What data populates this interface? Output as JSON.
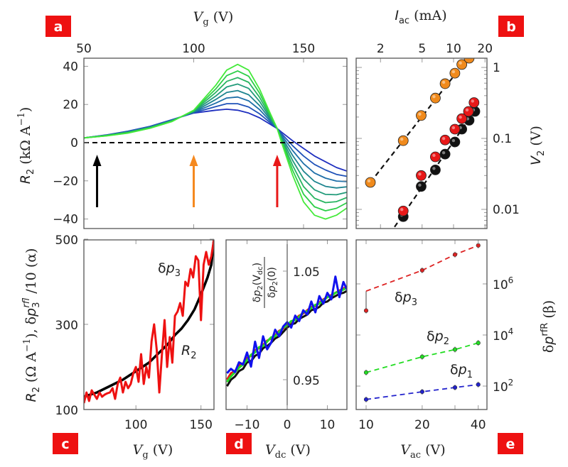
{
  "panel_tags": [
    "a",
    "b",
    "c",
    "d",
    "e"
  ],
  "tag_color": "#ee1111",
  "chart_data": [
    {
      "panel": "a",
      "type": "line",
      "xlabel": {
        "main": "V",
        "sub": "g",
        "unit": " (V)"
      },
      "ylabel": {
        "main": "R",
        "sub": "2",
        "unit": " (kΩ A",
        "sup": "−1",
        "close": ")"
      },
      "xlim": [
        50,
        170
      ],
      "ylim": [
        -45,
        44
      ],
      "xticks": [
        50,
        100,
        150
      ],
      "yticks": [
        40,
        20,
        0,
        -20,
        -40
      ],
      "x": [
        50,
        60,
        70,
        80,
        90,
        100,
        110,
        115,
        120,
        125,
        130,
        135,
        138,
        140,
        145,
        150,
        155,
        160,
        165,
        170
      ],
      "series": [
        {
          "color": "#1f2fbf",
          "values": [
            2.5,
            4,
            6,
            8.5,
            12,
            15.5,
            17,
            17.5,
            17,
            15.5,
            13,
            9.5,
            7.4,
            5.5,
            1,
            -3,
            -7,
            -10,
            -13,
            -15
          ]
        },
        {
          "color": "#1f52b8",
          "values": [
            2.5,
            3.9,
            5.9,
            8.4,
            11.9,
            15.7,
            18.9,
            20.4,
            20.4,
            18.7,
            15.1,
            10.3,
            7.4,
            4.7,
            -1.6,
            -7,
            -11.4,
            -14.3,
            -16.6,
            -17.7
          ]
        },
        {
          "color": "#1e6fa8",
          "values": [
            2.5,
            3.9,
            5.7,
            8.2,
            11.7,
            15.9,
            20.7,
            23.4,
            23.9,
            21.9,
            17.3,
            11.1,
            7.4,
            3.9,
            -4.1,
            -11,
            -15.9,
            -18.6,
            -20.1,
            -20.4
          ]
        },
        {
          "color": "#1f8590",
          "values": [
            2.5,
            3.8,
            5.6,
            8.1,
            11.6,
            16.1,
            22.6,
            26.3,
            27.3,
            25.1,
            19.4,
            11.9,
            7.4,
            3.1,
            -6.7,
            -15,
            -20.3,
            -22.9,
            -23.7,
            -23.1
          ]
        },
        {
          "color": "#229b7a",
          "values": [
            2.5,
            3.7,
            5.4,
            7.9,
            11.4,
            16.4,
            24.4,
            29.2,
            30.7,
            28.4,
            21.6,
            12.6,
            7.4,
            2.4,
            -9.3,
            -19,
            -24.7,
            -27.1,
            -27.3,
            -25.9
          ]
        },
        {
          "color": "#27b460",
          "values": [
            2.5,
            3.6,
            5.3,
            7.8,
            11.3,
            16.6,
            26.3,
            32.1,
            34.1,
            31.6,
            23.7,
            13.4,
            7.4,
            1.6,
            -11.9,
            -23,
            -29.1,
            -31.4,
            -30.9,
            -28.6
          ]
        },
        {
          "color": "#2dcf48",
          "values": [
            2.5,
            3.6,
            5.1,
            7.6,
            11.1,
            16.8,
            28.1,
            35.1,
            37.6,
            34.8,
            25.9,
            14.2,
            7.4,
            0.8,
            -14.4,
            -27,
            -33.6,
            -35.7,
            -34.4,
            -31.3
          ]
        },
        {
          "color": "#44ea3a",
          "values": [
            2.5,
            3.5,
            5,
            7.5,
            11,
            17,
            30,
            38,
            41,
            38,
            28,
            15,
            7.4,
            0,
            -17,
            -31,
            -38,
            -40,
            -38,
            -34
          ]
        }
      ],
      "zero_line": 0,
      "arrows": [
        {
          "x": 56,
          "color": "#000000"
        },
        {
          "x": 100,
          "color": "#f5891f"
        },
        {
          "x": 138,
          "color": "#e81818"
        }
      ]
    },
    {
      "panel": "b",
      "type": "scatter",
      "xscale": "log",
      "yscale": "log",
      "xlabel": {
        "main": "I",
        "sub": "ac",
        "unit": " (mA)"
      },
      "ylabel": {
        "main": "V",
        "sub": "2",
        "unit": " (V)"
      },
      "xticks": [
        2,
        5,
        10,
        20
      ],
      "yticks": [
        {
          "v": 1,
          "label": "1"
        },
        {
          "v": 0.1,
          "label": "0.1"
        },
        {
          "v": 0.01,
          "label": "0.01"
        }
      ],
      "series": [
        {
          "name": "orange",
          "color": "#f08a1c",
          "x": [
            1.6,
            3.3,
            4.9,
            6.7,
            8.3,
            10.3,
            12,
            14.1
          ],
          "y": [
            0.024,
            0.093,
            0.21,
            0.37,
            0.59,
            0.83,
            1.1,
            1.35
          ],
          "fit": [
            [
              1.6,
              0.024
            ],
            [
              15,
              1.6
            ]
          ]
        },
        {
          "name": "black",
          "color": "#111111",
          "x": [
            3.3,
            4.9,
            6.7,
            8.3,
            10.3,
            12,
            14.1,
            16
          ],
          "y": [
            0.0079,
            0.021,
            0.036,
            0.06,
            0.089,
            0.135,
            0.18,
            0.24
          ],
          "fit": [
            [
              2.45,
              0.0045
            ],
            [
              14.5,
              0.2
            ]
          ]
        },
        {
          "name": "red",
          "color": "#e81818",
          "x": [
            3.3,
            4.9,
            6.7,
            8.3,
            10.3,
            12,
            13.9,
            15.7
          ],
          "y": [
            0.0095,
            0.03,
            0.055,
            0.095,
            0.135,
            0.19,
            0.24,
            0.32
          ]
        }
      ]
    },
    {
      "panel": "c",
      "type": "line",
      "xlabel": {
        "main": "V",
        "sub": "g",
        "unit": " (V)"
      },
      "ylabel": {
        "main": "R",
        "sub": "2",
        "unit1": " (Ω A",
        "sup1": "−1",
        "unit2": "), δ",
        "p": "p",
        "psub": "3",
        "psup": "rfl",
        "unit3": " /10 (α)"
      },
      "xlim": [
        60,
        160
      ],
      "ylim": [
        100,
        500
      ],
      "xticks": [
        100,
        150
      ],
      "yticks": [
        500,
        300,
        100
      ],
      "annotations": [
        {
          "text": "δ",
          "it": "p",
          "sub": "3"
        },
        {
          "it": "R",
          "sub": "2"
        }
      ],
      "series": [
        {
          "name": "R2",
          "color": "#000000",
          "x": [
            60,
            70,
            80,
            90,
            100,
            110,
            120,
            125,
            130,
            135,
            140,
            145,
            150,
            155,
            158,
            160
          ],
          "values": [
            130,
            140,
            155,
            170,
            190,
            210,
            240,
            255,
            275,
            290,
            310,
            335,
            370,
            410,
            440,
            500
          ]
        },
        {
          "name": "δp3",
          "color": "#ee1111",
          "x_start": 60,
          "x_step": 2,
          "values": [
            115,
            140,
            120,
            145,
            135,
            125,
            140,
            130,
            135,
            138,
            140,
            150,
            125,
            160,
            175,
            140,
            165,
            150,
            160,
            185,
            200,
            165,
            230,
            160,
            200,
            175,
            260,
            300,
            240,
            140,
            230,
            310,
            200,
            270,
            210,
            320,
            330,
            350,
            320,
            400,
            390,
            430,
            410,
            460,
            450,
            310,
            440,
            470,
            440,
            460,
            500
          ]
        }
      ]
    },
    {
      "panel": "d",
      "type": "line",
      "xlabel": {
        "main": "V",
        "sub": "dc",
        "unit": " (V)"
      },
      "ylabel": {
        "num_p": "p",
        "num_sub": "2",
        "num_arg": "(V",
        "num_argsub": "dc",
        "num_close": ")",
        "den_p": "p",
        "den_sub": "2",
        "den_arg": "(0)",
        "delta": "δ"
      },
      "xlim": [
        -15.3,
        14.9
      ],
      "ylim": [
        0.923,
        1.079
      ],
      "xticks": [
        {
          "v": -10,
          "label": "−10"
        },
        {
          "v": 0,
          "label": "0"
        },
        {
          "v": 10,
          "label": "10"
        }
      ],
      "yticks": [
        {
          "v": 1.05,
          "label": "1.05"
        },
        {
          "v": 0.95,
          "label": "0.95"
        }
      ],
      "x_start": -15,
      "x_step": 1,
      "series": [
        {
          "color": "#111111",
          "values": [
            0.944,
            0.95,
            0.953,
            0.958,
            0.96,
            0.966,
            0.967,
            0.972,
            0.974,
            0.979,
            0.981,
            0.984,
            0.988,
            0.99,
            0.994,
            0.998,
            1.001,
            1.002,
            1.006,
            1.008,
            1.01,
            1.014,
            1.015,
            1.017,
            1.021,
            1.022,
            1.025,
            1.027,
            1.029,
            1.03,
            1.032
          ]
        },
        {
          "color": "#e81818",
          "values": [
            0.95,
            0.956,
            0.958,
            0.963,
            0.965,
            0.97,
            0.972,
            0.977,
            0.979,
            0.982,
            0.986,
            0.988,
            0.991,
            0.995,
            0.997,
            1.001,
            1.003,
            1.006,
            1.009,
            1.011,
            1.014,
            1.017,
            1.018,
            1.021,
            1.024,
            1.026,
            1.028,
            1.03,
            1.032,
            1.034,
            1.036
          ]
        },
        {
          "color": "#22dd22",
          "values": [
            0.948,
            0.953,
            0.957,
            0.961,
            0.964,
            0.968,
            0.973,
            0.975,
            0.98,
            0.981,
            0.985,
            0.989,
            0.99,
            0.994,
            0.998,
            1.0,
            1.004,
            1.005,
            1.008,
            1.012,
            1.013,
            1.016,
            1.019,
            1.02,
            1.023,
            1.026,
            1.027,
            1.03,
            1.031,
            1.033,
            1.035
          ]
        },
        {
          "color": "#1111ee",
          "values": [
            0.956,
            0.96,
            0.957,
            0.966,
            0.964,
            0.975,
            0.962,
            0.985,
            0.97,
            0.99,
            0.978,
            0.984,
            0.996,
            0.99,
            0.999,
            1.003,
            0.998,
            1.009,
            1.004,
            1.014,
            1.01,
            1.022,
            1.012,
            1.027,
            1.02,
            1.03,
            1.024,
            1.045,
            1.026,
            1.04,
            1.032
          ]
        }
      ]
    },
    {
      "panel": "e",
      "type": "scatter",
      "xscale": "log",
      "yscale": "log",
      "xlabel": {
        "main": "V",
        "sub": "ac",
        "unit": " (V)"
      },
      "ylabel": {
        "delta": "δ",
        "main": "p",
        "sup": "rfR",
        "unit": " (β)"
      },
      "xticks": [
        10,
        20,
        40
      ],
      "xticks_minor": [
        30
      ],
      "yticks": [
        {
          "v": 1000000,
          "base": "10",
          "exp": "6"
        },
        {
          "v": 10000,
          "base": "10",
          "exp": "4"
        },
        {
          "v": 100,
          "base": "10",
          "exp": "2"
        }
      ],
      "x": [
        10,
        20,
        30,
        40
      ],
      "series": [
        {
          "name": "δp3",
          "label": {
            "d": "δ",
            "p": "p",
            "sub": "3"
          },
          "color": "#dd2222",
          "values": [
            90000,
            3400000,
            14000000,
            32000000
          ],
          "fit_start": 520000
        },
        {
          "name": "δp2",
          "label": {
            "d": "δ",
            "p": "p",
            "sub": "2"
          },
          "color": "#22dd22",
          "values": [
            340,
            1400,
            2700,
            4900
          ]
        },
        {
          "name": "δp1",
          "label": {
            "d": "δ",
            "p": "p",
            "sub": "1"
          },
          "color": "#2222cc",
          "values": [
            30,
            60,
            88,
            115
          ]
        }
      ]
    }
  ]
}
